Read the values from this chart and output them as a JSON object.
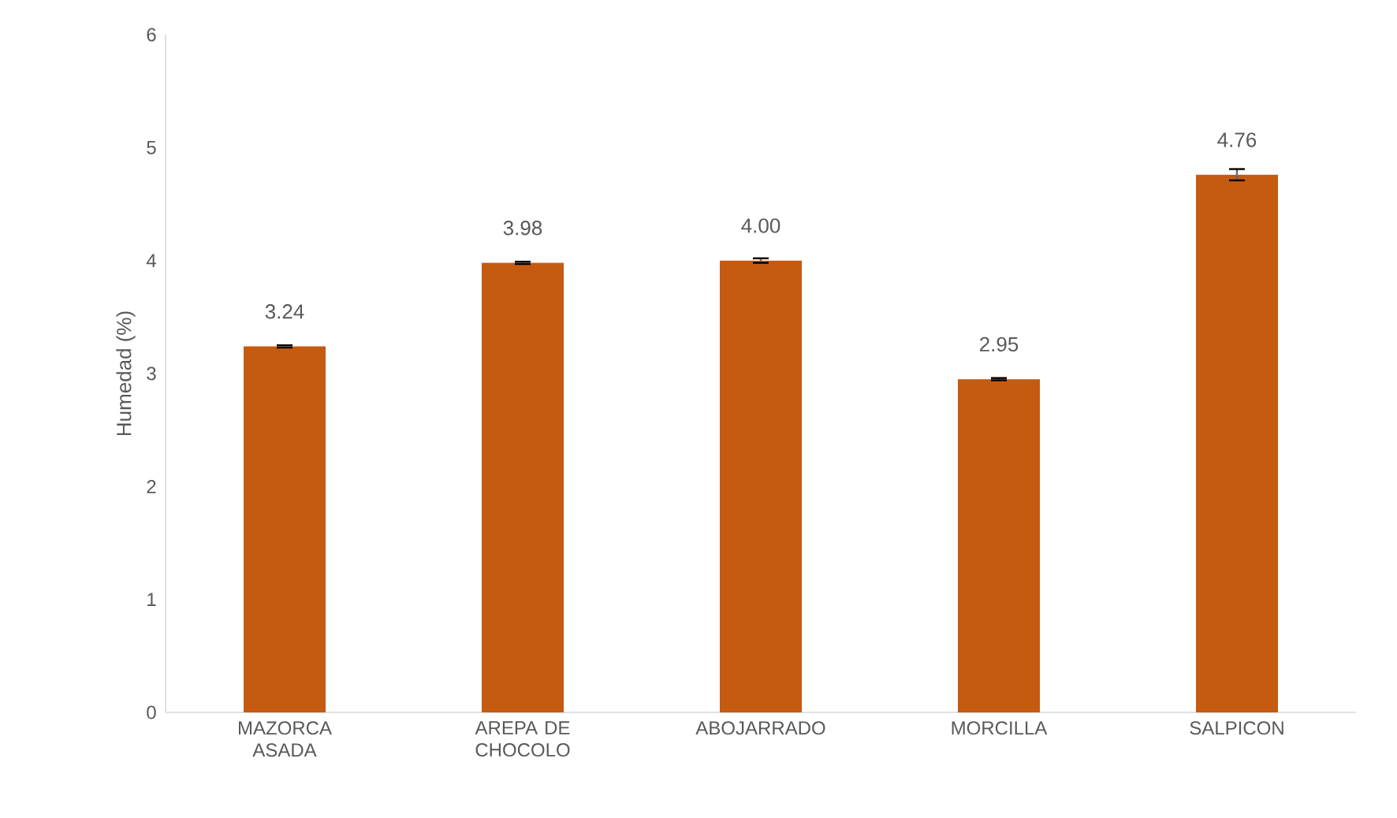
{
  "chart_data": {
    "type": "bar",
    "ylabel": "Humedad (%)",
    "categories": [
      "MAZORCA ASADA",
      "AREPA DE CHOCOLO",
      "ABOJARRADO",
      "MORCILLA",
      "SALPICON"
    ],
    "values": [
      3.24,
      3.98,
      4.0,
      2.95,
      4.76
    ],
    "errors": [
      0.01,
      0.01,
      0.02,
      0.01,
      0.05
    ],
    "value_labels": [
      "3.24",
      "3.98",
      "4.00",
      "2.95",
      "4.76"
    ],
    "color": "#c55a11",
    "ylim": [
      0,
      6
    ],
    "yticks": [
      0,
      1,
      2,
      3,
      4,
      5,
      6
    ],
    "grid": false
  }
}
